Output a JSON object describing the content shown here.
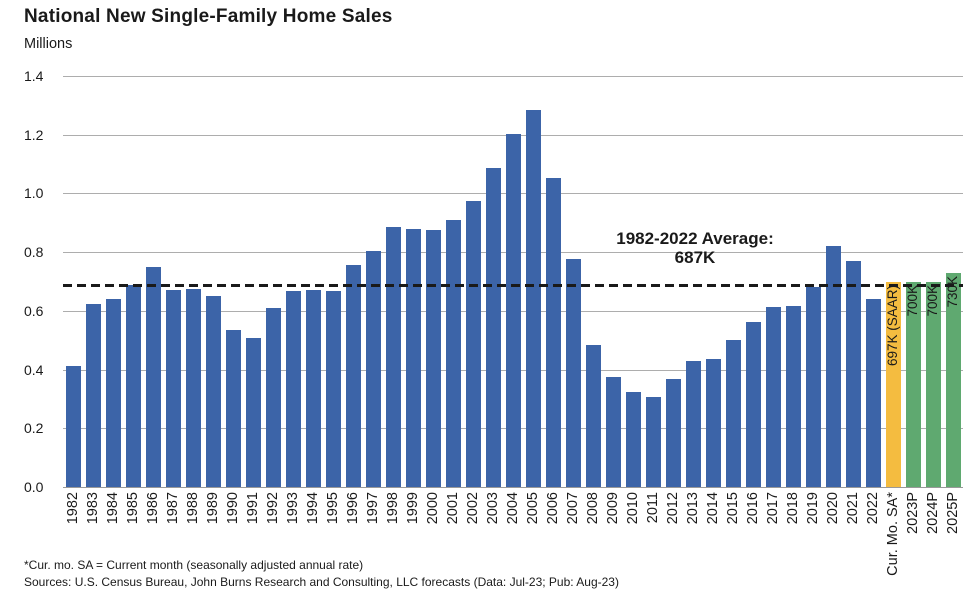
{
  "header": {
    "title": "National New Single-Family Home Sales",
    "units_label": "Millions"
  },
  "chart_data": {
    "type": "bar",
    "title": "National New Single-Family Home Sales",
    "ylabel": "Millions",
    "xlabel": "",
    "ylim": [
      0,
      1.4
    ],
    "yticks": [
      "0.0",
      "0.2",
      "0.4",
      "0.6",
      "0.8",
      "1.0",
      "1.2",
      "1.4"
    ],
    "grid": true,
    "legend": "none",
    "categories": [
      "1982",
      "1983",
      "1984",
      "1985",
      "1986",
      "1987",
      "1988",
      "1989",
      "1990",
      "1991",
      "1992",
      "1993",
      "1994",
      "1995",
      "1996",
      "1997",
      "1998",
      "1999",
      "2000",
      "2001",
      "2002",
      "2003",
      "2004",
      "2005",
      "2006",
      "2007",
      "2008",
      "2009",
      "2010",
      "2011",
      "2012",
      "2013",
      "2014",
      "2015",
      "2016",
      "2017",
      "2018",
      "2019",
      "2020",
      "2021",
      "2022",
      "Cur. Mo. SA*",
      "2023P",
      "2024P",
      "2025P"
    ],
    "values": [
      0.412,
      0.623,
      0.639,
      0.688,
      0.75,
      0.671,
      0.676,
      0.65,
      0.534,
      0.509,
      0.61,
      0.666,
      0.67,
      0.667,
      0.757,
      0.804,
      0.886,
      0.88,
      0.877,
      0.908,
      0.973,
      1.086,
      1.203,
      1.283,
      1.051,
      0.776,
      0.485,
      0.375,
      0.323,
      0.306,
      0.368,
      0.429,
      0.437,
      0.501,
      0.561,
      0.613,
      0.617,
      0.683,
      0.822,
      0.771,
      0.641,
      0.697,
      0.7,
      0.7,
      0.73
    ],
    "bar_series": [
      "historical",
      "historical",
      "historical",
      "historical",
      "historical",
      "historical",
      "historical",
      "historical",
      "historical",
      "historical",
      "historical",
      "historical",
      "historical",
      "historical",
      "historical",
      "historical",
      "historical",
      "historical",
      "historical",
      "historical",
      "historical",
      "historical",
      "historical",
      "historical",
      "historical",
      "historical",
      "historical",
      "historical",
      "historical",
      "historical",
      "historical",
      "historical",
      "historical",
      "historical",
      "historical",
      "historical",
      "historical",
      "historical",
      "historical",
      "historical",
      "historical",
      "current_month",
      "forecast",
      "forecast",
      "forecast"
    ],
    "bar_labels": [
      null,
      null,
      null,
      null,
      null,
      null,
      null,
      null,
      null,
      null,
      null,
      null,
      null,
      null,
      null,
      null,
      null,
      null,
      null,
      null,
      null,
      null,
      null,
      null,
      null,
      null,
      null,
      null,
      null,
      null,
      null,
      null,
      null,
      null,
      null,
      null,
      null,
      null,
      null,
      null,
      null,
      "697K (SAAR)",
      "700K",
      "700K",
      "730K"
    ],
    "colors": {
      "historical": "#3C64A8",
      "current_month": "#F4BC40",
      "forecast": "#5FA970",
      "gridline": "#adadad",
      "average_line": "#1a1a1a"
    },
    "average_line": {
      "value": 0.687,
      "style": "dashed",
      "label_line1": "1982-2022 Average:",
      "label_line2": "687K"
    }
  },
  "footnotes": {
    "line1": "*Cur. mo. SA = Current month (seasonally adjusted annual rate)",
    "line2": "Sources: U.S. Census Bureau, John Burns Research and Consulting, LLC forecasts (Data: Jul-23; Pub: Aug-23)"
  }
}
